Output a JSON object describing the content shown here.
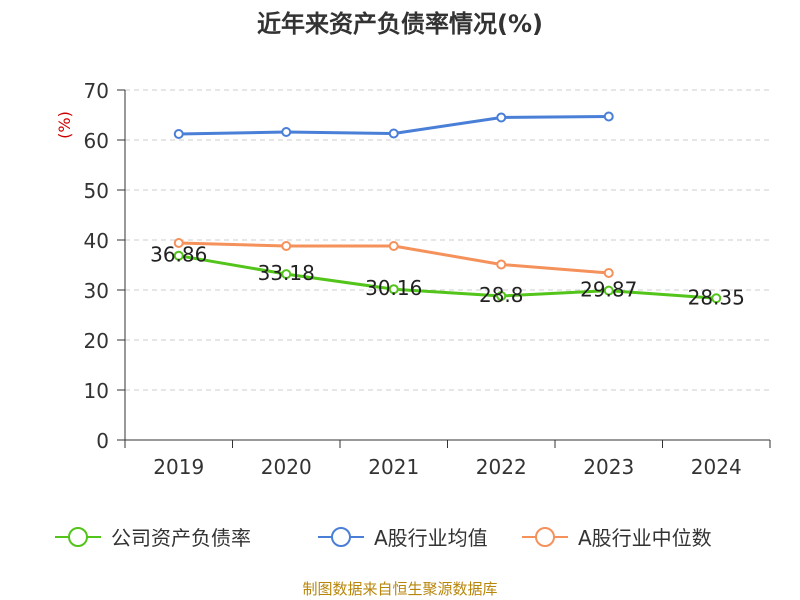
{
  "chart_data": {
    "type": "line",
    "title": "近年来资产负债率情况(%)",
    "ylabel": "(%)",
    "xlabel": "",
    "ylim": [
      0,
      70
    ],
    "yticks": [
      0,
      10,
      20,
      30,
      40,
      50,
      60,
      70
    ],
    "grid": true,
    "legend_position": "bottom",
    "categories": [
      "2019",
      "2020",
      "2021",
      "2022",
      "2023",
      "2024"
    ],
    "series": [
      {
        "name": "公司资产负债率",
        "color": "#52c41a",
        "values": [
          36.86,
          33.18,
          30.16,
          28.8,
          29.87,
          28.35
        ],
        "labels": [
          "36.86",
          "33.18",
          "30.16",
          "28.8",
          "29.87",
          "28.35"
        ]
      },
      {
        "name": "A股行业均值",
        "color": "#4a7fd8",
        "values": [
          61.2,
          61.6,
          61.3,
          64.5,
          64.7,
          null
        ]
      },
      {
        "name": "A股行业中位数",
        "color": "#f5915a",
        "values": [
          39.4,
          38.8,
          38.8,
          35.1,
          33.4,
          null
        ]
      }
    ]
  },
  "source": "制图数据来自恒生聚源数据库"
}
